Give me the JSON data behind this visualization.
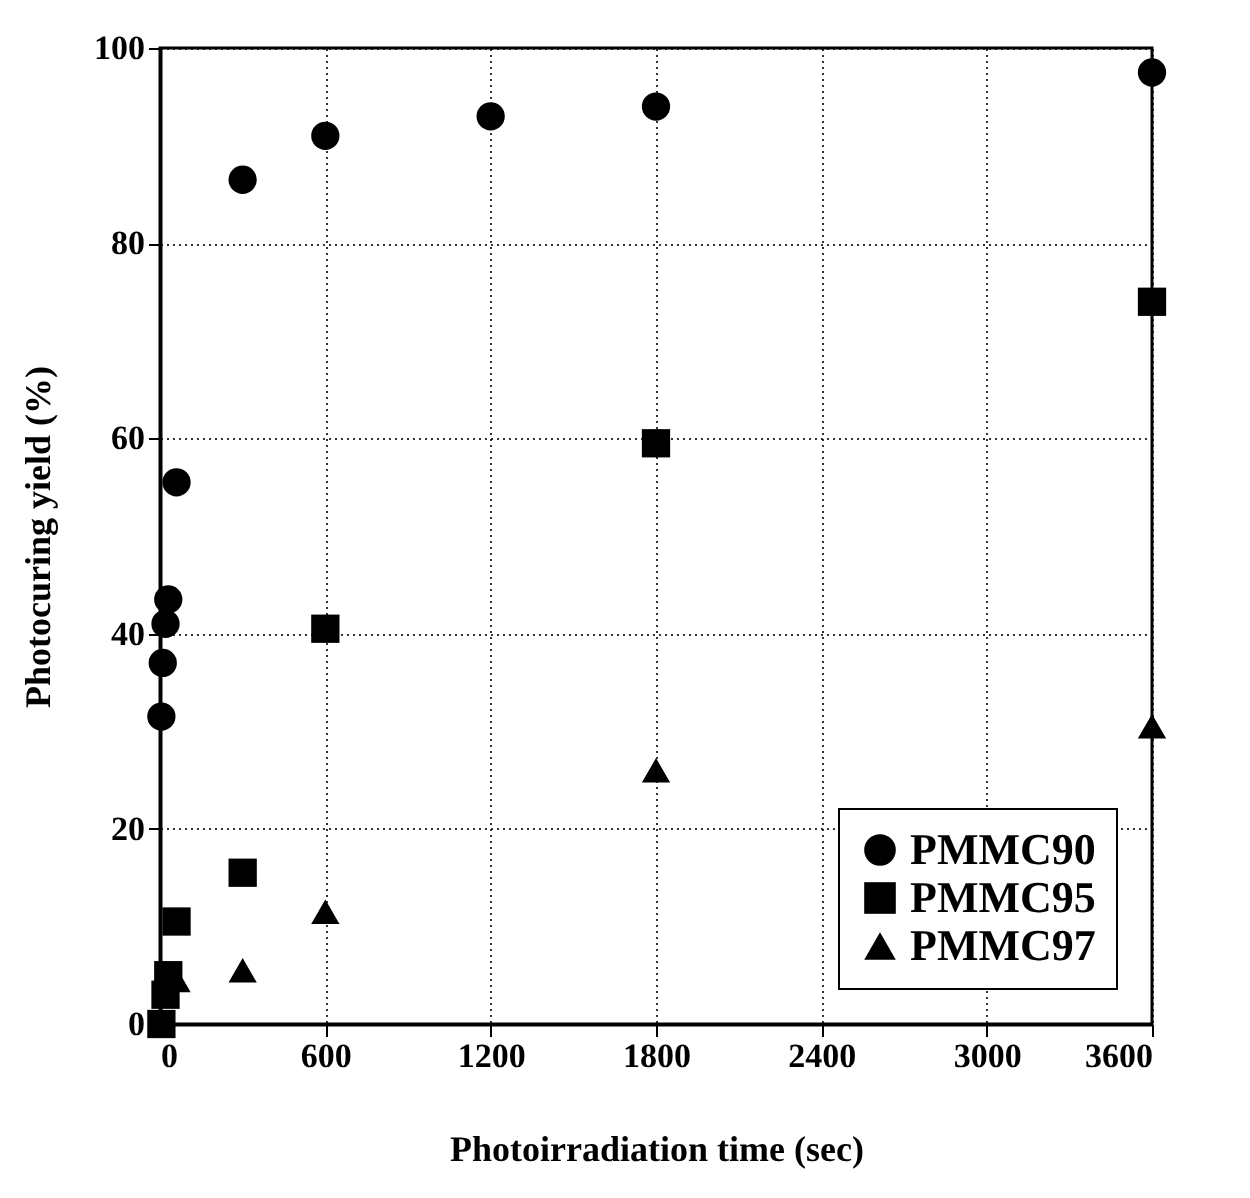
{
  "chart_data": {
    "type": "scatter",
    "xlabel": "Photoirradiation time (sec)",
    "ylabel": "Photocuring yield (%)",
    "xlim": [
      0,
      3600
    ],
    "xticks": [
      0,
      600,
      1200,
      1800,
      2400,
      3000,
      3600
    ],
    "ylim": [
      0,
      100
    ],
    "yticks": [
      0,
      20,
      40,
      60,
      80,
      100
    ],
    "grid": true,
    "legend": "bottom right",
    "series": [
      {
        "name": "PMMC90",
        "color": "#000000",
        "marker": "circle",
        "x": [
          5,
          10,
          20,
          30,
          60,
          300,
          600,
          1200,
          1800,
          3600
        ],
        "values": [
          31.5,
          37,
          41,
          43.5,
          55.5,
          86.5,
          91,
          93,
          94,
          97.5
        ]
      },
      {
        "name": "PMMC95",
        "color": "#000000",
        "marker": "square",
        "x": [
          5,
          20,
          30,
          60,
          300,
          600,
          1800,
          3600
        ],
        "values": [
          0,
          3,
          5,
          10.5,
          15.5,
          40.5,
          59.5,
          74
        ]
      },
      {
        "name": "PMMC97",
        "color": "#000000",
        "marker": "triangle",
        "x": [
          60,
          300,
          600,
          1800,
          3600
        ],
        "values": [
          4.5,
          5.5,
          11.5,
          26,
          30.5
        ]
      }
    ]
  }
}
